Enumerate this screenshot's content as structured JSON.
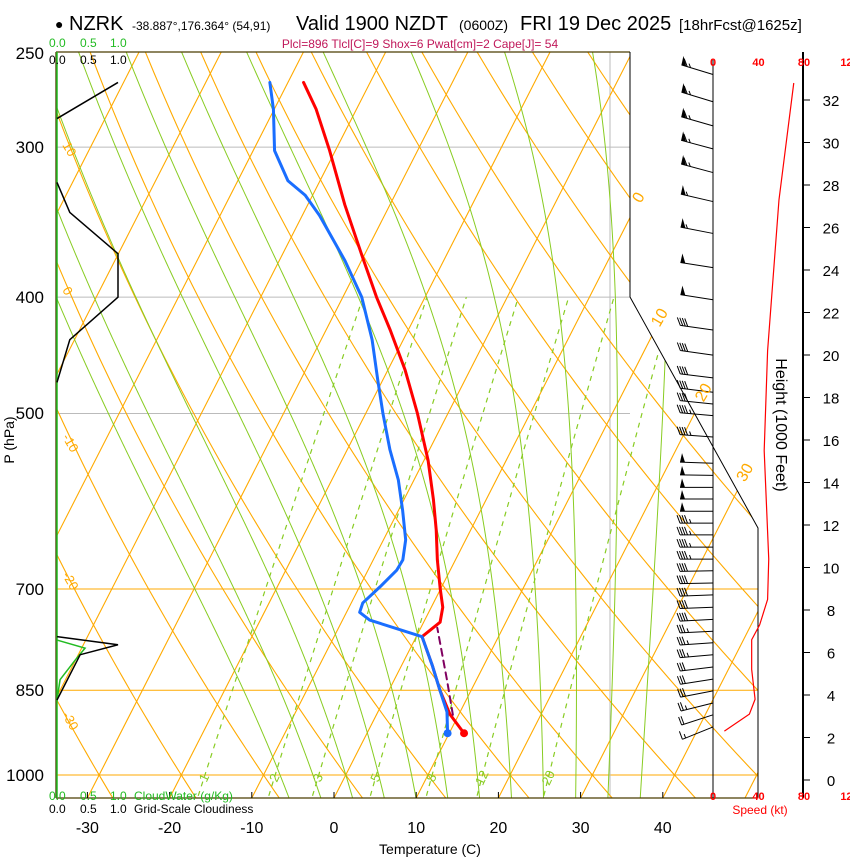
{
  "header": {
    "bullet": "●",
    "station": "NZRK",
    "coords": "-38.887°,176.364° (54,91)",
    "valid": "Valid 1900 NZDT",
    "utc": "(0600Z)",
    "date": "FRI 19 Dec 2025",
    "forecast": "[18hrFcst@1625z]",
    "indices": "Plcl=896 Tlcl[C]=9 Shox=6 Pwat[cm]=2 Cape[J]= 54"
  },
  "axes": {
    "pressure_label": "P (hPa)",
    "temperature_label": "Temperature (C)",
    "height_label": "Height (1000 Feet)",
    "speed_label": "Speed (kt)",
    "cloudwater_label": "CloudWater (g/Kg)",
    "cloudiness_label": "Grid-Scale Cloudiness",
    "scale_ticks": [
      "0.0",
      "0.5",
      "1.0"
    ]
  },
  "colors": {
    "temperature": "#ff0000",
    "dewpoint": "#1a6eff",
    "parcel": "#800060",
    "isotherm": "#ffaa00",
    "moist_adiabat": "#88cc22",
    "cloudwater": "#22bb22",
    "wind": "#000000",
    "title_indices": "#c0185a"
  },
  "chart_data": {
    "type": "skew-t",
    "title": "NZRK Valid 1900 NZDT (0600Z) FRI 19 Dec 2025",
    "xlabel": "Temperature (C)",
    "ylabel": "P (hPa)",
    "pressure_ticks": [
      250,
      300,
      400,
      500,
      700,
      850,
      1000
    ],
    "temperature_ticks": [
      -30,
      -20,
      -10,
      0,
      10,
      20,
      30,
      40
    ],
    "pressure_range": [
      1045,
      250
    ],
    "temperature": [
      [
        923,
        11.8
      ],
      [
        890,
        8.9
      ],
      [
        850,
        6.2
      ],
      [
        810,
        3.7
      ],
      [
        767,
        0.7
      ],
      [
        746,
        2.0
      ],
      [
        725,
        1.4
      ],
      [
        699,
        -0.1
      ],
      [
        662,
        -2.2
      ],
      [
        625,
        -4.2
      ],
      [
        590,
        -6.4
      ],
      [
        547,
        -9.5
      ],
      [
        500,
        -13.7
      ],
      [
        460,
        -17.9
      ],
      [
        426,
        -22.2
      ],
      [
        400,
        -25.9
      ],
      [
        369,
        -30.3
      ],
      [
        335,
        -35.5
      ],
      [
        302,
        -40.7
      ],
      [
        279,
        -44.9
      ],
      [
        265,
        -48.1
      ]
    ],
    "dewpoint": [
      [
        923,
        9.8
      ],
      [
        886,
        8.4
      ],
      [
        850,
        6.2
      ],
      [
        810,
        3.7
      ],
      [
        767,
        0.7
      ],
      [
        743,
        -6.7
      ],
      [
        732,
        -8.4
      ],
      [
        719,
        -8.6
      ],
      [
        697,
        -7.5
      ],
      [
        675,
        -6.5
      ],
      [
        662,
        -6.4
      ],
      [
        637,
        -7.3
      ],
      [
        602,
        -9.5
      ],
      [
        568,
        -11.9
      ],
      [
        536,
        -14.8
      ],
      [
        500,
        -17.9
      ],
      [
        469,
        -20.6
      ],
      [
        434,
        -23.8
      ],
      [
        400,
        -27.7
      ],
      [
        373,
        -32.0
      ],
      [
        342,
        -37.9
      ],
      [
        329,
        -40.9
      ],
      [
        320,
        -43.9
      ],
      [
        302,
        -47.4
      ],
      [
        279,
        -50.1
      ],
      [
        265,
        -52.2
      ]
    ],
    "parcel": [
      [
        891,
        9.3
      ],
      [
        833,
        6.4
      ],
      [
        754,
        2.0
      ]
    ],
    "mixing_ratio_lines": [
      "1",
      "2",
      "3",
      "5",
      "8",
      "12",
      "20"
    ],
    "isotherm_labels": [
      "0",
      "10",
      "20",
      "30"
    ],
    "dry_adiabat_labels": [
      "10",
      "0",
      "-10",
      "-20",
      "-30"
    ],
    "cloudiness": [
      [
        265,
        1.0
      ],
      [
        284,
        0
      ],
      [
        321,
        0
      ],
      [
        340,
        0.21
      ],
      [
        368,
        1.0
      ],
      [
        400,
        1.0
      ],
      [
        434,
        0.21
      ],
      [
        471,
        0
      ],
      [
        767,
        0
      ],
      [
        779,
        1.0
      ],
      [
        794,
        0.38
      ],
      [
        866,
        0
      ]
    ],
    "cloud_water": [
      [
        772,
        0
      ],
      [
        784,
        0.46
      ],
      [
        802,
        0.3
      ],
      [
        833,
        0.05
      ],
      [
        866,
        0
      ]
    ],
    "height_ticks": [
      "0",
      "2",
      "4",
      "6",
      "8",
      "10",
      "12",
      "14",
      "16",
      "18",
      "20",
      "22",
      "24",
      "26",
      "28",
      "30",
      "32"
    ],
    "speed_ticks": [
      "0",
      "40",
      "80",
      "120"
    ],
    "wind_speed_profile": [
      [
        2.3,
        10
      ],
      [
        3.1,
        32
      ],
      [
        3.8,
        37
      ],
      [
        5.2,
        34
      ],
      [
        6.6,
        34
      ],
      [
        7.3,
        41
      ],
      [
        8.5,
        48
      ],
      [
        10.4,
        49
      ],
      [
        15.5,
        45
      ],
      [
        20.2,
        48
      ],
      [
        27.3,
        58
      ],
      [
        32.8,
        71
      ]
    ],
    "wind_barbs": [
      {
        "p": 261,
        "kt": 65,
        "dir": 287
      },
      {
        "p": 275,
        "kt": 65,
        "dir": 287
      },
      {
        "p": 288,
        "kt": 65,
        "dir": 286
      },
      {
        "p": 301,
        "kt": 65,
        "dir": 285
      },
      {
        "p": 315,
        "kt": 65,
        "dir": 285
      },
      {
        "p": 333,
        "kt": 55,
        "dir": 283
      },
      {
        "p": 354,
        "kt": 55,
        "dir": 281
      },
      {
        "p": 378,
        "kt": 50,
        "dir": 279
      },
      {
        "p": 402,
        "kt": 50,
        "dir": 279
      },
      {
        "p": 426,
        "kt": 40,
        "dir": 278
      },
      {
        "p": 447,
        "kt": 40,
        "dir": 278
      },
      {
        "p": 467,
        "kt": 40,
        "dir": 277
      },
      {
        "p": 480,
        "kt": 40,
        "dir": 277
      },
      {
        "p": 491,
        "kt": 40,
        "dir": 276
      },
      {
        "p": 502,
        "kt": 45,
        "dir": 275
      },
      {
        "p": 523,
        "kt": 45,
        "dir": 274
      },
      {
        "p": 550,
        "kt": 50,
        "dir": 272
      },
      {
        "p": 563,
        "kt": 50,
        "dir": 271
      },
      {
        "p": 576,
        "kt": 50,
        "dir": 270
      },
      {
        "p": 589,
        "kt": 50,
        "dir": 270
      },
      {
        "p": 603,
        "kt": 50,
        "dir": 270
      },
      {
        "p": 617,
        "kt": 45,
        "dir": 270
      },
      {
        "p": 631,
        "kt": 45,
        "dir": 270
      },
      {
        "p": 646,
        "kt": 45,
        "dir": 270
      },
      {
        "p": 661,
        "kt": 45,
        "dir": 270
      },
      {
        "p": 676,
        "kt": 40,
        "dir": 269
      },
      {
        "p": 692,
        "kt": 40,
        "dir": 269
      },
      {
        "p": 708,
        "kt": 40,
        "dir": 268
      },
      {
        "p": 725,
        "kt": 40,
        "dir": 268
      },
      {
        "p": 742,
        "kt": 40,
        "dir": 267
      },
      {
        "p": 759,
        "kt": 35,
        "dir": 267
      },
      {
        "p": 776,
        "kt": 35,
        "dir": 266
      },
      {
        "p": 794,
        "kt": 35,
        "dir": 265
      },
      {
        "p": 813,
        "kt": 30,
        "dir": 263
      },
      {
        "p": 832,
        "kt": 30,
        "dir": 261
      },
      {
        "p": 851,
        "kt": 30,
        "dir": 259
      },
      {
        "p": 871,
        "kt": 25,
        "dir": 256
      },
      {
        "p": 891,
        "kt": 20,
        "dir": 252
      },
      {
        "p": 912,
        "kt": 15,
        "dir": 248
      }
    ]
  }
}
